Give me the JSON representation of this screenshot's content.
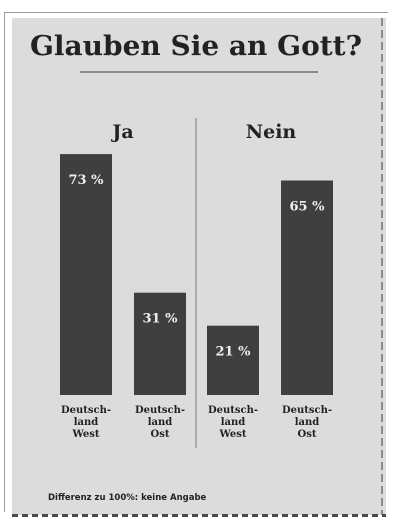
{
  "colors": {
    "bar": "#3f3f3f",
    "paper": "#dcdcdc",
    "text": "#222222",
    "value_text": "#f0f0f0"
  },
  "chart_data": {
    "type": "bar",
    "title": "Glauben Sie an Gott?",
    "groups": [
      {
        "label": "Ja",
        "categories": [
          "Deutsch-\nland\nWest",
          "Deutsch-\nland\nOst"
        ],
        "values": [
          73,
          31
        ],
        "value_labels": [
          "73 %",
          "31 %"
        ]
      },
      {
        "label": "Nein",
        "categories": [
          "Deutsch-\nland\nWest",
          "Deutsch-\nland\nOst"
        ],
        "values": [
          21,
          65
        ],
        "value_labels": [
          "21 %",
          "65 %"
        ]
      }
    ],
    "ylim": [
      0,
      100
    ],
    "grid": false,
    "footnote": "Differenz zu 100%: keine Angabe"
  }
}
